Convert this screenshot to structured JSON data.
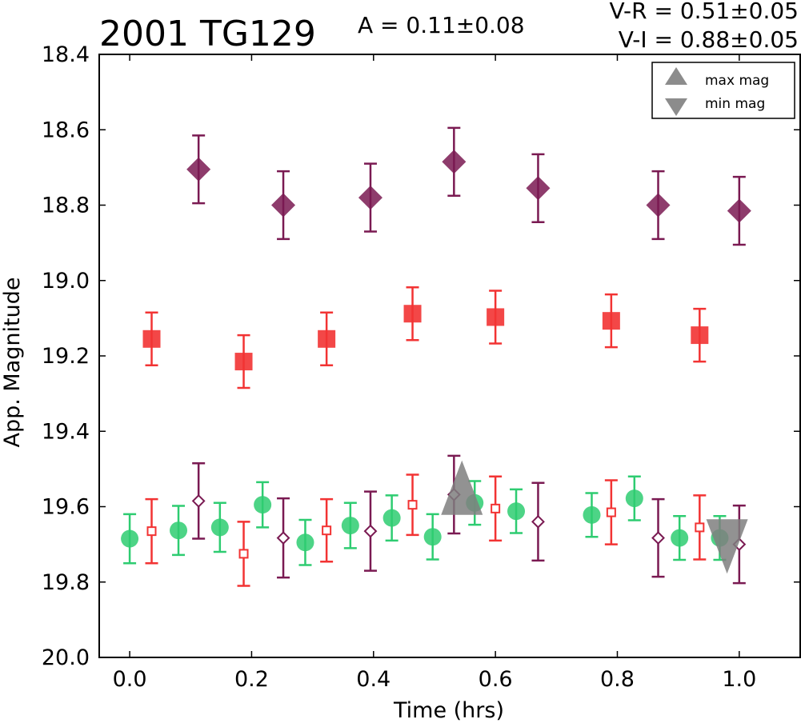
{
  "chart_data": {
    "type": "scatter",
    "title": "2001 TG129",
    "annotations": {
      "amplitude": "A  = 0.11±0.08",
      "v_r": "V-R = 0.51±0.05",
      "v_i": "V-I  = 0.88±0.05"
    },
    "xlabel": "Time (hrs)",
    "ylabel": "App. Magnitude",
    "xlim": [
      -0.05,
      1.1
    ],
    "ylim": [
      20.0,
      18.4
    ],
    "y_inverted": true,
    "xticks": [
      "0.0",
      "0.2",
      "0.4",
      "0.6",
      "0.8",
      "1.0"
    ],
    "yticks": [
      "18.4",
      "18.6",
      "18.8",
      "19.0",
      "19.2",
      "19.4",
      "19.6",
      "19.8",
      "20.0"
    ],
    "grid": false,
    "legend": {
      "placement": "top-right",
      "entries": [
        {
          "label": "max mag",
          "marker": "triangle-up",
          "color": "#7f7f7f"
        },
        {
          "label": "min mag",
          "marker": "triangle-down",
          "color": "#7f7f7f"
        }
      ]
    },
    "series": [
      {
        "marker": "diamond-filled",
        "color": "#7a1a52",
        "points": [
          {
            "x": 0.113,
            "y": 18.705,
            "err": 0.09
          },
          {
            "x": 0.252,
            "y": 18.8,
            "err": 0.09
          },
          {
            "x": 0.395,
            "y": 18.78,
            "err": 0.09
          },
          {
            "x": 0.532,
            "y": 18.685,
            "err": 0.09
          },
          {
            "x": 0.67,
            "y": 18.755,
            "err": 0.09
          },
          {
            "x": 0.867,
            "y": 18.8,
            "err": 0.09
          },
          {
            "x": 1.0,
            "y": 18.815,
            "err": 0.09
          }
        ]
      },
      {
        "marker": "square-filled",
        "color": "#f23333",
        "points": [
          {
            "x": 0.036,
            "y": 19.155,
            "err": 0.07
          },
          {
            "x": 0.187,
            "y": 19.215,
            "err": 0.07
          },
          {
            "x": 0.323,
            "y": 19.155,
            "err": 0.07
          },
          {
            "x": 0.464,
            "y": 19.088,
            "err": 0.07
          },
          {
            "x": 0.6,
            "y": 19.097,
            "err": 0.07
          },
          {
            "x": 0.79,
            "y": 19.107,
            "err": 0.07
          },
          {
            "x": 0.935,
            "y": 19.145,
            "err": 0.07
          }
        ]
      },
      {
        "marker": "circle-filled",
        "color": "#2ecc71",
        "points": [
          {
            "x": 0.0,
            "y": 19.685,
            "err": 0.065
          },
          {
            "x": 0.08,
            "y": 19.663,
            "err": 0.065
          },
          {
            "x": 0.148,
            "y": 19.655,
            "err": 0.065
          },
          {
            "x": 0.218,
            "y": 19.595,
            "err": 0.06
          },
          {
            "x": 0.288,
            "y": 19.695,
            "err": 0.06
          },
          {
            "x": 0.362,
            "y": 19.65,
            "err": 0.06
          },
          {
            "x": 0.43,
            "y": 19.63,
            "err": 0.06
          },
          {
            "x": 0.497,
            "y": 19.68,
            "err": 0.06
          },
          {
            "x": 0.566,
            "y": 19.59,
            "err": 0.058
          },
          {
            "x": 0.634,
            "y": 19.612,
            "err": 0.058
          },
          {
            "x": 0.758,
            "y": 19.622,
            "err": 0.058
          },
          {
            "x": 0.828,
            "y": 19.578,
            "err": 0.058
          },
          {
            "x": 0.902,
            "y": 19.683,
            "err": 0.058
          },
          {
            "x": 0.968,
            "y": 19.683,
            "err": 0.058
          }
        ]
      },
      {
        "marker": "square-open",
        "color": "#f23333",
        "points": [
          {
            "x": 0.036,
            "y": 19.665,
            "err": 0.085
          },
          {
            "x": 0.187,
            "y": 19.725,
            "err": 0.085
          },
          {
            "x": 0.323,
            "y": 19.663,
            "err": 0.083
          },
          {
            "x": 0.464,
            "y": 19.595,
            "err": 0.08
          },
          {
            "x": 0.6,
            "y": 19.605,
            "err": 0.085
          },
          {
            "x": 0.79,
            "y": 19.615,
            "err": 0.085
          },
          {
            "x": 0.935,
            "y": 19.655,
            "err": 0.085
          }
        ]
      },
      {
        "marker": "diamond-open",
        "color": "#7a1a52",
        "points": [
          {
            "x": 0.113,
            "y": 19.585,
            "err": 0.1
          },
          {
            "x": 0.252,
            "y": 19.683,
            "err": 0.105
          },
          {
            "x": 0.395,
            "y": 19.665,
            "err": 0.105
          },
          {
            "x": 0.532,
            "y": 19.568,
            "err": 0.103
          },
          {
            "x": 0.67,
            "y": 19.64,
            "err": 0.103
          },
          {
            "x": 0.867,
            "y": 19.683,
            "err": 0.103
          },
          {
            "x": 1.0,
            "y": 19.7,
            "err": 0.103
          }
        ]
      },
      {
        "marker": "triangle-up",
        "color": "#7f7f7f",
        "points": [
          {
            "x": 0.545,
            "y": 19.575
          }
        ]
      },
      {
        "marker": "triangle-down",
        "color": "#7f7f7f",
        "points": [
          {
            "x": 0.98,
            "y": 19.68
          }
        ]
      }
    ]
  }
}
